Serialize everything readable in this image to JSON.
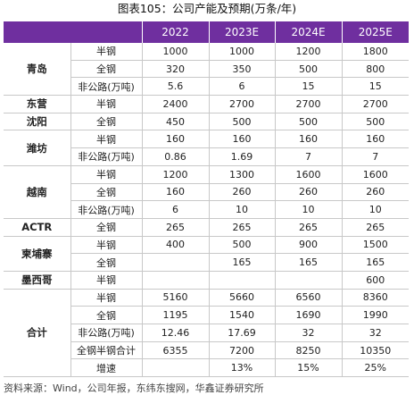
{
  "title": "图表105：公司产能及预期(万条/年)",
  "header": {
    "years": [
      "2022",
      "2023E",
      "2024E",
      "2025E"
    ]
  },
  "groups": [
    {
      "region": "青岛",
      "rows": [
        {
          "type": "半钢",
          "values": [
            "1000",
            "1000",
            "1200",
            "1800"
          ]
        },
        {
          "type": "全钢",
          "values": [
            "320",
            "350",
            "500",
            "800"
          ]
        },
        {
          "type": "非公路(万吨)",
          "values": [
            "5.6",
            "6",
            "15",
            "15"
          ]
        }
      ]
    },
    {
      "region": "东营",
      "rows": [
        {
          "type": "半钢",
          "values": [
            "2400",
            "2700",
            "2700",
            "2700"
          ]
        }
      ]
    },
    {
      "region": "沈阳",
      "rows": [
        {
          "type": "全钢",
          "values": [
            "450",
            "500",
            "500",
            "500"
          ]
        }
      ]
    },
    {
      "region": "潍坊",
      "rows": [
        {
          "type": "半钢",
          "values": [
            "160",
            "160",
            "160",
            "160"
          ]
        },
        {
          "type": "非公路(万吨)",
          "values": [
            "0.86",
            "1.69",
            "7",
            "7"
          ]
        }
      ]
    },
    {
      "region": "越南",
      "rows": [
        {
          "type": "半钢",
          "values": [
            "1200",
            "1300",
            "1600",
            "1600"
          ]
        },
        {
          "type": "全钢",
          "values": [
            "160",
            "260",
            "260",
            "260"
          ]
        },
        {
          "type": "非公路(万吨)",
          "values": [
            "6",
            "10",
            "10",
            "10"
          ]
        }
      ]
    },
    {
      "region": "ACTR",
      "rows": [
        {
          "type": "全钢",
          "values": [
            "265",
            "265",
            "265",
            "265"
          ]
        }
      ]
    },
    {
      "region": "柬埔寨",
      "rows": [
        {
          "type": "半钢",
          "values": [
            "400",
            "500",
            "900",
            "1500"
          ]
        },
        {
          "type": "全钢",
          "values": [
            "",
            "165",
            "165",
            "165"
          ]
        }
      ]
    },
    {
      "region": "墨西哥",
      "rows": [
        {
          "type": "半钢",
          "values": [
            "",
            "",
            "",
            "600"
          ]
        }
      ]
    },
    {
      "region": "合计",
      "rows": [
        {
          "type": "半钢",
          "values": [
            "5160",
            "5660",
            "6560",
            "8360"
          ]
        },
        {
          "type": "全钢",
          "values": [
            "1195",
            "1540",
            "1690",
            "1990"
          ]
        },
        {
          "type": "非公路(万吨)",
          "values": [
            "12.46",
            "17.69",
            "32",
            "32"
          ]
        },
        {
          "type": "全钢半钢合计",
          "values": [
            "6355",
            "7200",
            "8250",
            "10350"
          ]
        },
        {
          "type": "增速",
          "values": [
            "",
            "13%",
            "15%",
            "25%"
          ]
        }
      ]
    }
  ],
  "source": "资料来源：Wind，公司年报，东纬东搜网，华鑫证券研究所",
  "colors": {
    "header_bg": "#6f2f9f",
    "border": "#c8c8c8"
  }
}
